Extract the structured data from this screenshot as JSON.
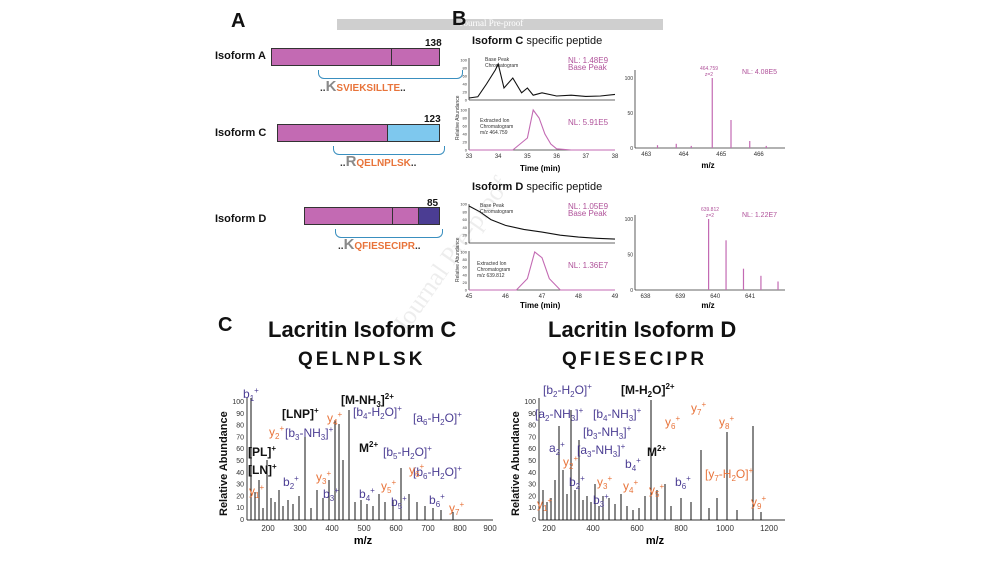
{
  "watermark": "Journal Pre-proof",
  "panels": {
    "a": "A",
    "b": "B",
    "c": "C"
  },
  "panel_a": {
    "isoforms": [
      {
        "label": "Isoform A",
        "length": "138",
        "peptide_lead": "K",
        "peptide": "SVIEKSILLTE"
      },
      {
        "label": "Isoform C",
        "length": "123",
        "peptide_lead": "R",
        "peptide": "QELNPLSK"
      },
      {
        "label": "Isoform D",
        "length": "85",
        "peptide_lead": "K",
        "peptide": "QFIESECIPR"
      }
    ],
    "dots": ".."
  },
  "panel_b": {
    "c": {
      "title_bold": "Isoform C",
      "title_rest": " specific peptide",
      "bpc_label1": "Base Peak",
      "bpc_label2": "Chromatogram",
      "bpc_nl": "NL: 1.48E9",
      "bpc_nl2": "Base Peak",
      "eic_label1": "Extracted Ion",
      "eic_label2": "Chromatogram",
      "eic_label3": "m/z 464.759",
      "eic_nl": "NL: 5.91E5",
      "time_ticks": [
        "33",
        "34",
        "35",
        "36",
        "37",
        "38"
      ],
      "yticks": [
        "0",
        "20",
        "40",
        "60",
        "80",
        "100"
      ],
      "xlabel": "Time (min)",
      "ylabel": "Relative Abundance",
      "ms_peak_label": "464.759",
      "ms_charge": "z=2",
      "ms_nl": "NL: 4.08E5",
      "ms_ticks": [
        "463",
        "464",
        "465",
        "466"
      ],
      "ms_yticks": [
        "0",
        "50",
        "100"
      ],
      "ms_xlabel": "m/z"
    },
    "d": {
      "title_bold": "Isoform D",
      "title_rest": " specific peptide",
      "bpc_label1": "Base Peak",
      "bpc_label2": "Chromatogram",
      "bpc_nl": "NL: 1.05E9",
      "bpc_nl2": "Base Peak",
      "eic_label1": "Extracted Ion",
      "eic_label2": "Chromatogram",
      "eic_label3": "m/z 639.812",
      "eic_nl": "NL: 1.36E7",
      "time_ticks": [
        "45",
        "46",
        "47",
        "48",
        "49"
      ],
      "yticks": [
        "0",
        "20",
        "40",
        "60",
        "80",
        "100"
      ],
      "xlabel": "Time (min)",
      "ylabel": "Relative Abundance",
      "ms_peak_label": "639.812",
      "ms_charge": "z=2",
      "ms_nl": "NL: 1.22E7",
      "ms_ticks": [
        "638",
        "639",
        "640",
        "641"
      ],
      "ms_yticks": [
        "0",
        "50",
        "100"
      ],
      "ms_xlabel": "m/z"
    }
  },
  "panel_c": {
    "left": {
      "title": "Lacritin Isoform C",
      "sequence": "QELNPLSK",
      "xlabel": "m/z",
      "ylabel": "Relative Abundance",
      "xticks": [
        "200",
        "300",
        "400",
        "500",
        "600",
        "700",
        "800",
        "900"
      ],
      "yticks": [
        "0",
        "10",
        "20",
        "30",
        "40",
        "50",
        "60",
        "70",
        "80",
        "90",
        "100"
      ]
    },
    "right": {
      "title": "Lacritin Isoform D",
      "sequence": "QFIESECIPR",
      "xlabel": "m/z",
      "ylabel": "Relative Abundance",
      "xticks": [
        "200",
        "400",
        "600",
        "800",
        "1000",
        "1200"
      ],
      "yticks": [
        "0",
        "10",
        "20",
        "30",
        "40",
        "50",
        "60",
        "70",
        "80",
        "90",
        "100"
      ]
    }
  },
  "chart_data": [
    {
      "type": "line",
      "name": "Isoform C base peak chromatogram",
      "x": [
        33,
        33.3,
        33.6,
        33.9,
        34,
        34.2,
        34.5,
        34.8,
        35,
        35.2,
        35.5,
        36,
        36.5,
        37,
        37.5,
        38
      ],
      "y": [
        5,
        8,
        40,
        75,
        90,
        30,
        55,
        18,
        30,
        12,
        18,
        10,
        12,
        9,
        10,
        14
      ]
    },
    {
      "type": "line",
      "name": "Isoform C extracted ion chromatogram",
      "x": [
        33,
        34.5,
        35,
        35.2,
        35.4,
        35.6,
        35.8,
        36,
        36.5,
        38
      ],
      "y": [
        0,
        0,
        30,
        100,
        80,
        40,
        15,
        3,
        0,
        0
      ]
    },
    {
      "type": "bar",
      "name": "Isoform C precursor MS",
      "x": [
        463.3,
        463.8,
        464.2,
        464.76,
        465.26,
        465.76,
        466.2
      ],
      "y": [
        4,
        6,
        3,
        100,
        40,
        10,
        3
      ]
    },
    {
      "type": "line",
      "name": "Isoform D base peak chromatogram",
      "x": [
        45,
        45.3,
        45.6,
        46,
        46.5,
        47,
        47.5,
        48,
        48.5,
        49
      ],
      "y": [
        95,
        80,
        60,
        45,
        35,
        28,
        20,
        15,
        12,
        10
      ]
    },
    {
      "type": "line",
      "name": "Isoform D extracted ion chromatogram",
      "x": [
        45,
        46.3,
        46.6,
        46.8,
        47,
        47.2,
        47.5,
        49
      ],
      "y": [
        0,
        0,
        30,
        100,
        85,
        30,
        0,
        0
      ]
    },
    {
      "type": "bar",
      "name": "Isoform D precursor MS",
      "x": [
        639.81,
        640.31,
        640.81,
        641.31,
        641.8
      ],
      "y": [
        100,
        70,
        30,
        20,
        12
      ]
    }
  ]
}
